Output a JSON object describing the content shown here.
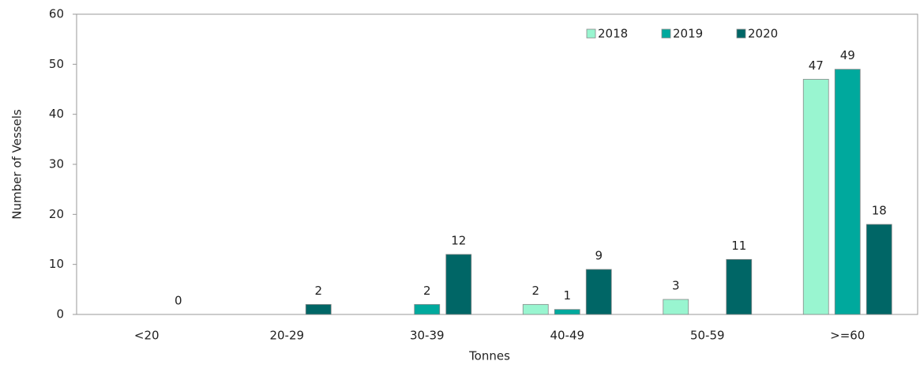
{
  "chart_data": {
    "type": "bar",
    "x_label": "Tonnes",
    "y_label": "Number of Vessels",
    "categories": [
      "<20",
      "20-29",
      "30-39",
      "40-49",
      "50-59",
      ">=60"
    ],
    "series": [
      {
        "name": "2018",
        "color": "#99f5d0",
        "values": [
          null,
          null,
          null,
          2,
          3,
          47
        ]
      },
      {
        "name": "2019",
        "color": "#00a99d",
        "values": [
          null,
          null,
          2,
          1,
          null,
          49
        ]
      },
      {
        "name": "2020",
        "color": "#006666",
        "values": [
          0,
          2,
          12,
          9,
          11,
          18
        ]
      }
    ],
    "ylim": [
      0,
      60
    ],
    "yticks": [
      0,
      10,
      20,
      30,
      40,
      50,
      60
    ],
    "grid": false,
    "legend": "top-right"
  }
}
